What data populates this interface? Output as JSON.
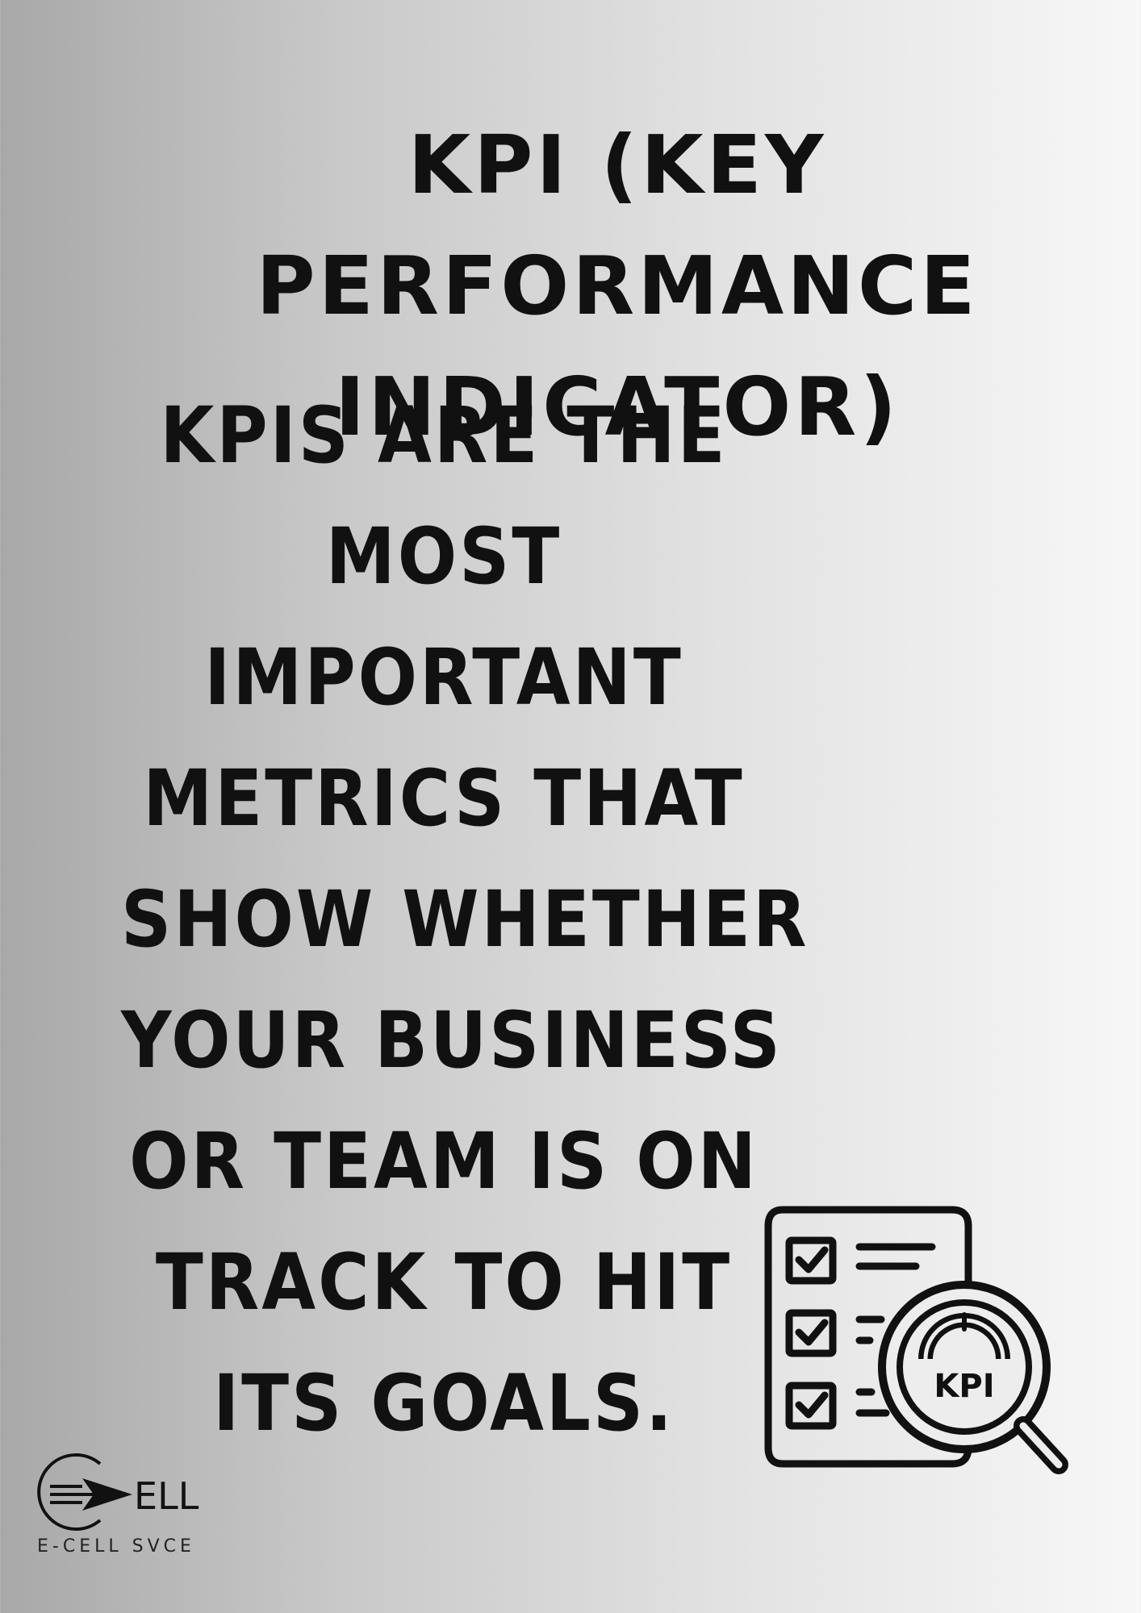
{
  "title": {
    "line1": "KPI (KEY PERFORMANCE",
    "line2": "INDICATOR)"
  },
  "body": {
    "lines": [
      "KPIS ARE THE",
      "MOST",
      "IMPORTANT",
      "METRICS THAT",
      "SHOW WHETHER",
      "YOUR BUSINESS",
      "OR TEAM IS ON",
      "TRACK TO HIT",
      "ITS GOALS."
    ]
  },
  "illustration": {
    "icon": "kpi-checklist-magnifier-icon",
    "label": "KPI"
  },
  "logo": {
    "icon": "e-cell-logo-icon",
    "wordmark": "ELL",
    "caption": "E-CELL SVCE"
  }
}
